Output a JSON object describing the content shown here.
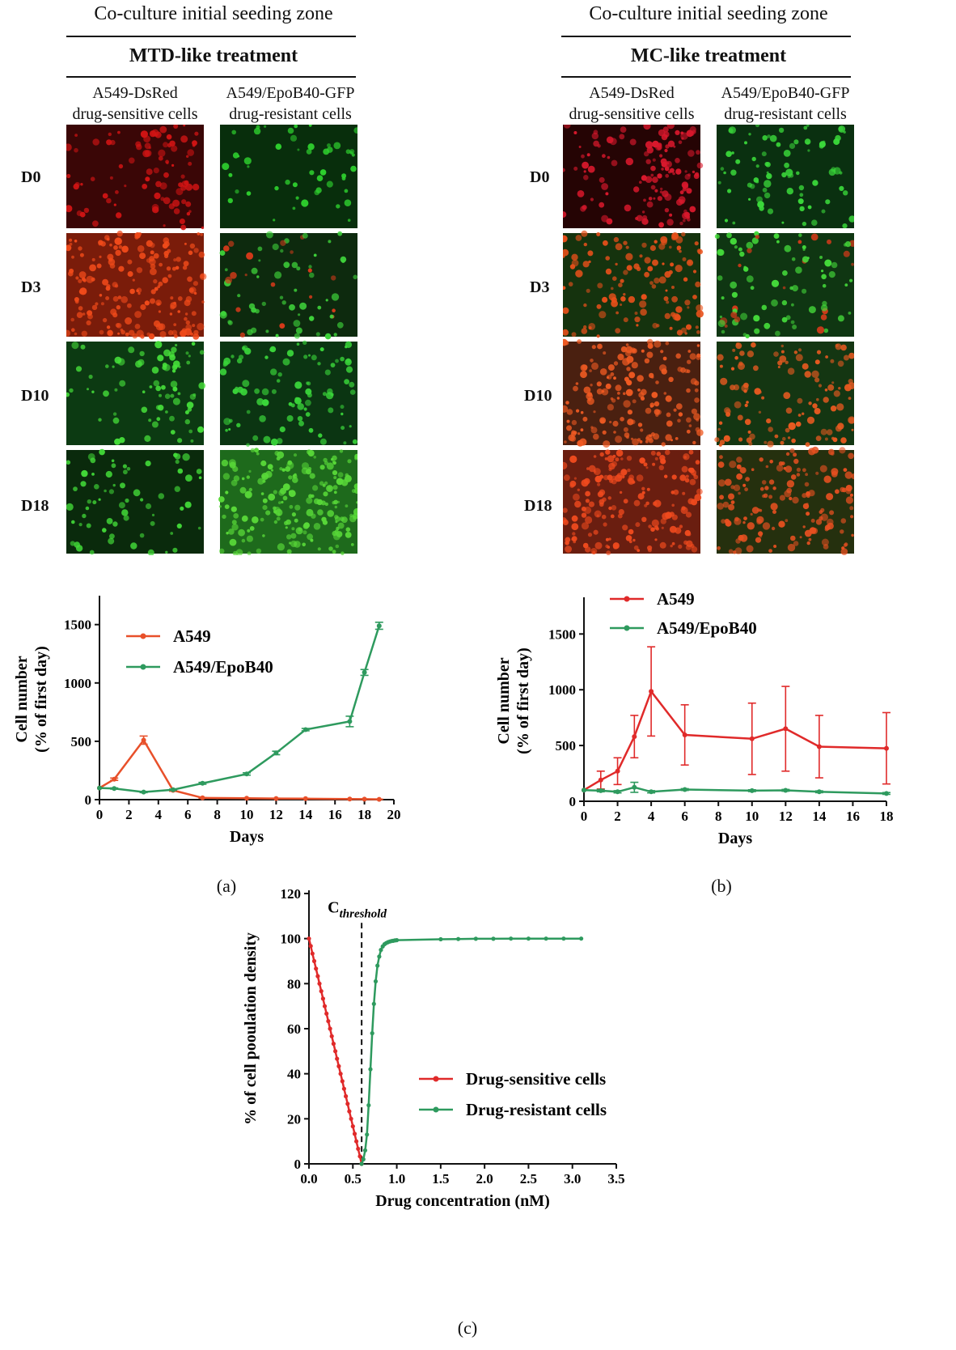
{
  "panel_a": {
    "header": "Co-culture initial seeding zone",
    "treatment": "MTD-like treatment",
    "col1": "A549-DsRed\ndrug-sensitive cells",
    "col2": "A549/EpoB40-GFP\ndrug-resistant cells",
    "rows": [
      "D0",
      "D3",
      "D10",
      "D18"
    ],
    "label": "(a)"
  },
  "panel_b": {
    "header": "Co-culture initial seeding zone",
    "treatment": "MC-like treatment",
    "col1": "A549-DsRed\ndrug-sensitive cells",
    "col2": "A549/EpoB40-GFP\ndrug-resistant cells",
    "rows": [
      "D0",
      "D3",
      "D10",
      "D18"
    ],
    "label": "(b)"
  },
  "panel_c": {
    "label": "(c)"
  },
  "images": {
    "a": [
      [
        {
          "bg": "#3a0606",
          "cell": "#d31414",
          "density": 0.35,
          "cluster": true
        },
        {
          "bg": "#082e0c",
          "cell": "#2ed02e",
          "density": 0.12
        }
      ],
      [
        {
          "bg": "#7a1c0a",
          "cell": "#f04a1a",
          "density": 0.9
        },
        {
          "bg": "#0d2a0e",
          "cell": "#3ed23a",
          "density": 0.25,
          "reddish": true
        }
      ],
      [
        {
          "bg": "#0c3a12",
          "cell": "#46e03a",
          "density": 0.28,
          "cluster": true
        },
        {
          "bg": "#0b3512",
          "cell": "#3ad63a",
          "density": 0.35
        }
      ],
      [
        {
          "bg": "#0a2a0c",
          "cell": "#42da38",
          "density": 0.22
        },
        {
          "bg": "#1e6a1c",
          "cell": "#58d838",
          "density": 0.95
        }
      ]
    ],
    "b": [
      [
        {
          "bg": "#250404",
          "cell": "#d8182c",
          "density": 0.6,
          "cluster": true
        },
        {
          "bg": "#0a3010",
          "cell": "#3ad83a",
          "density": 0.3
        }
      ],
      [
        {
          "bg": "#15330e",
          "cell": "#e8501a",
          "density": 0.55
        },
        {
          "bg": "#0f3612",
          "cell": "#44da3a",
          "density": 0.35,
          "reddish": true
        }
      ],
      [
        {
          "bg": "#4a2010",
          "cell": "#f05a22",
          "density": 0.85
        },
        {
          "bg": "#143612",
          "cell": "#e85a20",
          "density": 0.5
        }
      ],
      [
        {
          "bg": "#6a1e10",
          "cell": "#f04a1e",
          "density": 0.9
        },
        {
          "bg": "#25300e",
          "cell": "#e85020",
          "density": 0.7
        }
      ]
    ]
  },
  "chart_data": [
    {
      "type": "line",
      "xlabel": "Days",
      "ylabel": "Cell number\n(% of first day)",
      "xlim": [
        0,
        20
      ],
      "ylim": [
        0,
        1500
      ],
      "xticks": [
        0,
        2,
        4,
        6,
        8,
        10,
        12,
        14,
        16,
        18,
        20
      ],
      "yticks": [
        0,
        500,
        1000,
        1500
      ],
      "legend_position": "top-left",
      "series": [
        {
          "name": "A549",
          "color": "#e8502a",
          "x": [
            0,
            1,
            3,
            5,
            7,
            10,
            12,
            14,
            17,
            18,
            19
          ],
          "y": [
            100,
            175,
            510,
            80,
            15,
            12,
            10,
            8,
            5,
            4,
            3
          ],
          "err": [
            0,
            10,
            35,
            8,
            3,
            2,
            2,
            2,
            1,
            1,
            1
          ]
        },
        {
          "name": "A549/EpoB40",
          "color": "#2e9a5e",
          "x": [
            0,
            1,
            3,
            5,
            7,
            10,
            12,
            14,
            17,
            18,
            19
          ],
          "y": [
            100,
            95,
            65,
            85,
            140,
            220,
            400,
            600,
            670,
            1090,
            1490
          ],
          "err": [
            0,
            5,
            5,
            5,
            8,
            10,
            15,
            10,
            45,
            25,
            30
          ]
        }
      ]
    },
    {
      "type": "line",
      "xlabel": "Days",
      "ylabel": "Cell number\n(% of first day)",
      "xlim": [
        0,
        18
      ],
      "ylim": [
        0,
        1500
      ],
      "xticks": [
        0,
        2,
        4,
        6,
        8,
        10,
        12,
        14,
        16,
        18
      ],
      "yticks": [
        0,
        500,
        1000,
        1500
      ],
      "legend_position": "top-left",
      "series": [
        {
          "name": "A549",
          "color": "#e02a2a",
          "x": [
            0,
            1,
            2,
            3,
            4,
            6,
            10,
            12,
            14,
            18
          ],
          "y": [
            100,
            190,
            270,
            580,
            985,
            595,
            560,
            650,
            490,
            475
          ],
          "err": [
            0,
            80,
            120,
            190,
            400,
            270,
            320,
            380,
            280,
            320
          ]
        },
        {
          "name": "A549/EpoB40",
          "color": "#2e9a5e",
          "x": [
            0,
            1,
            2,
            3,
            4,
            6,
            10,
            12,
            14,
            18
          ],
          "y": [
            100,
            95,
            85,
            125,
            85,
            105,
            95,
            98,
            85,
            70
          ],
          "err": [
            0,
            10,
            10,
            45,
            10,
            8,
            8,
            8,
            8,
            8
          ]
        }
      ]
    },
    {
      "type": "line",
      "xlabel": "Drug concentration (nM)",
      "ylabel": "% of cell pooulation density",
      "xlim": [
        0,
        3.5
      ],
      "ylim": [
        0,
        120
      ],
      "xticks": [
        0.0,
        0.5,
        1.0,
        1.5,
        2.0,
        2.5,
        3.0,
        3.5
      ],
      "yticks": [
        0,
        20,
        40,
        60,
        80,
        100,
        120
      ],
      "threshold": {
        "x": 0.6,
        "label_main": "C",
        "label_sub": "threshold"
      },
      "legend_position": "center-right",
      "series": [
        {
          "name": "Drug-sensitive cells",
          "color": "#e02a2a",
          "kind": "sensitive"
        },
        {
          "name": "Drug-resistant cells",
          "color": "#2e9a5e",
          "kind": "resistant",
          "x": [
            0.6,
            0.62,
            0.64,
            0.66,
            0.68,
            0.7,
            0.72,
            0.74,
            0.76,
            0.78,
            0.8,
            0.82,
            0.84,
            0.86,
            0.88,
            0.9,
            0.92,
            0.94,
            0.96,
            0.98,
            1.0,
            1.5,
            1.7,
            1.9,
            2.1,
            2.3,
            2.5,
            2.7,
            2.9,
            3.1
          ],
          "y": [
            0,
            2,
            6,
            13,
            26,
            42,
            58,
            71,
            81,
            88,
            92,
            95,
            96.5,
            97.5,
            98,
            98.4,
            98.7,
            98.9,
            99,
            99.2,
            99.3,
            99.7,
            99.8,
            99.9,
            99.9,
            100,
            100,
            100,
            100,
            100
          ]
        }
      ]
    }
  ]
}
